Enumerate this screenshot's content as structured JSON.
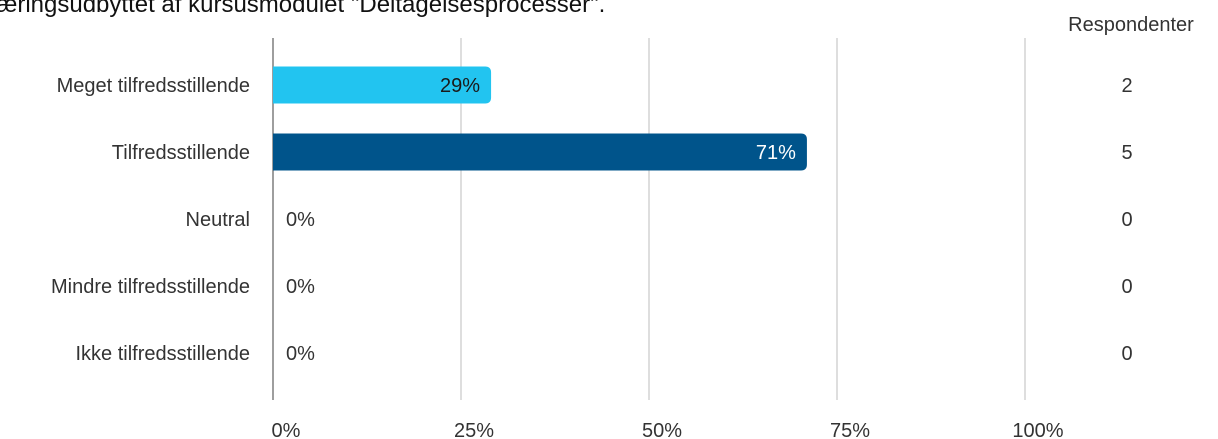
{
  "chart_data": {
    "type": "bar",
    "orientation": "horizontal",
    "title": "æringsudbyttet af kursusmodulet \"Deltagelsesprocesser\".",
    "categories": [
      "Meget tilfredsstillende",
      "Tilfredsstillende",
      "Neutral",
      "Mindre tilfredsstillende",
      "Ikke tilfredsstillende"
    ],
    "values": [
      29,
      71,
      0,
      0,
      0
    ],
    "value_labels": [
      "29%",
      "71%",
      "0%",
      "0%",
      "0%"
    ],
    "respondents_header": "Respondenter",
    "respondents": [
      2,
      5,
      0,
      0,
      0
    ],
    "xlim": [
      0,
      100
    ],
    "xticks": [
      "0%",
      "25%",
      "50%",
      "75%",
      "100%"
    ],
    "grid": "vertical",
    "colors": [
      "#22c4f0",
      "#00548b",
      "#00548b",
      "#00548b",
      "#00548b"
    ],
    "label_colors": [
      "#1a1a1a",
      "#ffffff",
      "#333333",
      "#333333",
      "#333333"
    ]
  }
}
